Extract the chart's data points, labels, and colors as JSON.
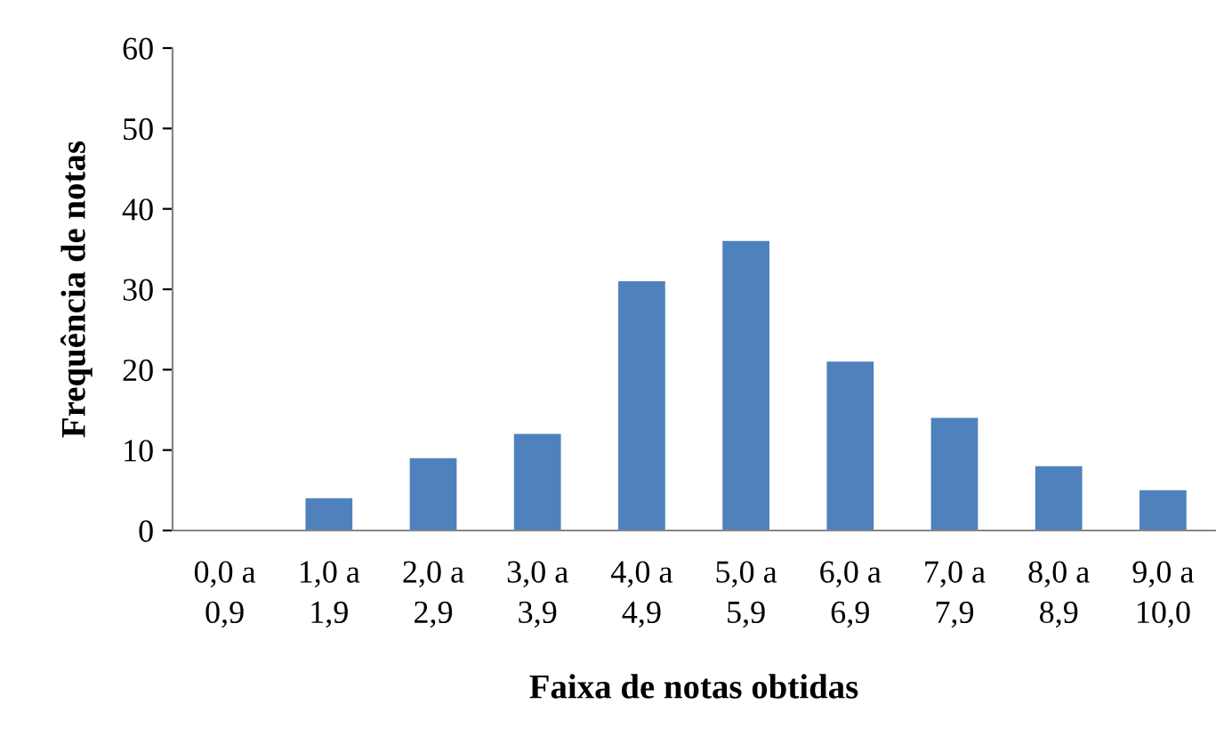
{
  "chart_data": {
    "type": "bar",
    "xlabel": "Faixa de notas obtidas",
    "ylabel": "Frequência de notas",
    "categories": [
      "0,0 a\n0,9",
      "1,0 a\n1,9",
      "2,0 a\n2,9",
      "3,0 a\n3,9",
      "4,0 a\n4,9",
      "5,0 a\n5,9",
      "6,0 a\n6,9",
      "7,0 a\n7,9",
      "8,0 a\n8,9",
      "9,0 a\n10,0"
    ],
    "values": [
      0,
      4,
      9,
      12,
      31,
      36,
      21,
      14,
      8,
      5
    ],
    "color": "#4f81bd",
    "ylim": [
      0,
      60
    ],
    "yticks": [
      0,
      10,
      20,
      30,
      40,
      50,
      60
    ],
    "grid": false,
    "legend": false
  }
}
